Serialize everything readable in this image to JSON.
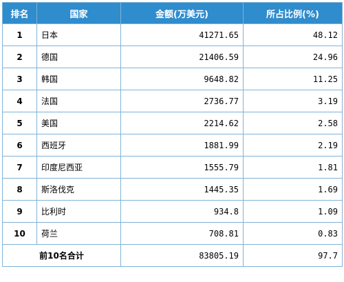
{
  "table": {
    "headers": {
      "rank": "排名",
      "country": "国家",
      "amount": "金额(万美元)",
      "share": "所占比例(%)"
    },
    "rows": [
      {
        "rank": "1",
        "country": "日本",
        "amount": "41271.65",
        "share": "48.12"
      },
      {
        "rank": "2",
        "country": "德国",
        "amount": "21406.59",
        "share": "24.96"
      },
      {
        "rank": "3",
        "country": "韩国",
        "amount": "9648.82",
        "share": "11.25"
      },
      {
        "rank": "4",
        "country": "法国",
        "amount": "2736.77",
        "share": "3.19"
      },
      {
        "rank": "5",
        "country": "美国",
        "amount": "2214.62",
        "share": "2.58"
      },
      {
        "rank": "6",
        "country": "西班牙",
        "amount": "1881.99",
        "share": "2.19"
      },
      {
        "rank": "7",
        "country": "印度尼西亚",
        "amount": "1555.79",
        "share": "1.81"
      },
      {
        "rank": "8",
        "country": "斯洛伐克",
        "amount": "1445.35",
        "share": "1.69"
      },
      {
        "rank": "9",
        "country": "比利时",
        "amount": "934.8",
        "share": "1.09"
      },
      {
        "rank": "10",
        "country": "荷兰",
        "amount": "708.81",
        "share": "0.83"
      }
    ],
    "total": {
      "label": "前10名合计",
      "amount": "83805.19",
      "share": "97.7"
    }
  },
  "colors": {
    "header_bg": "#2f8ccd",
    "header_text": "#ffffff",
    "border": "#7fb2d6"
  }
}
